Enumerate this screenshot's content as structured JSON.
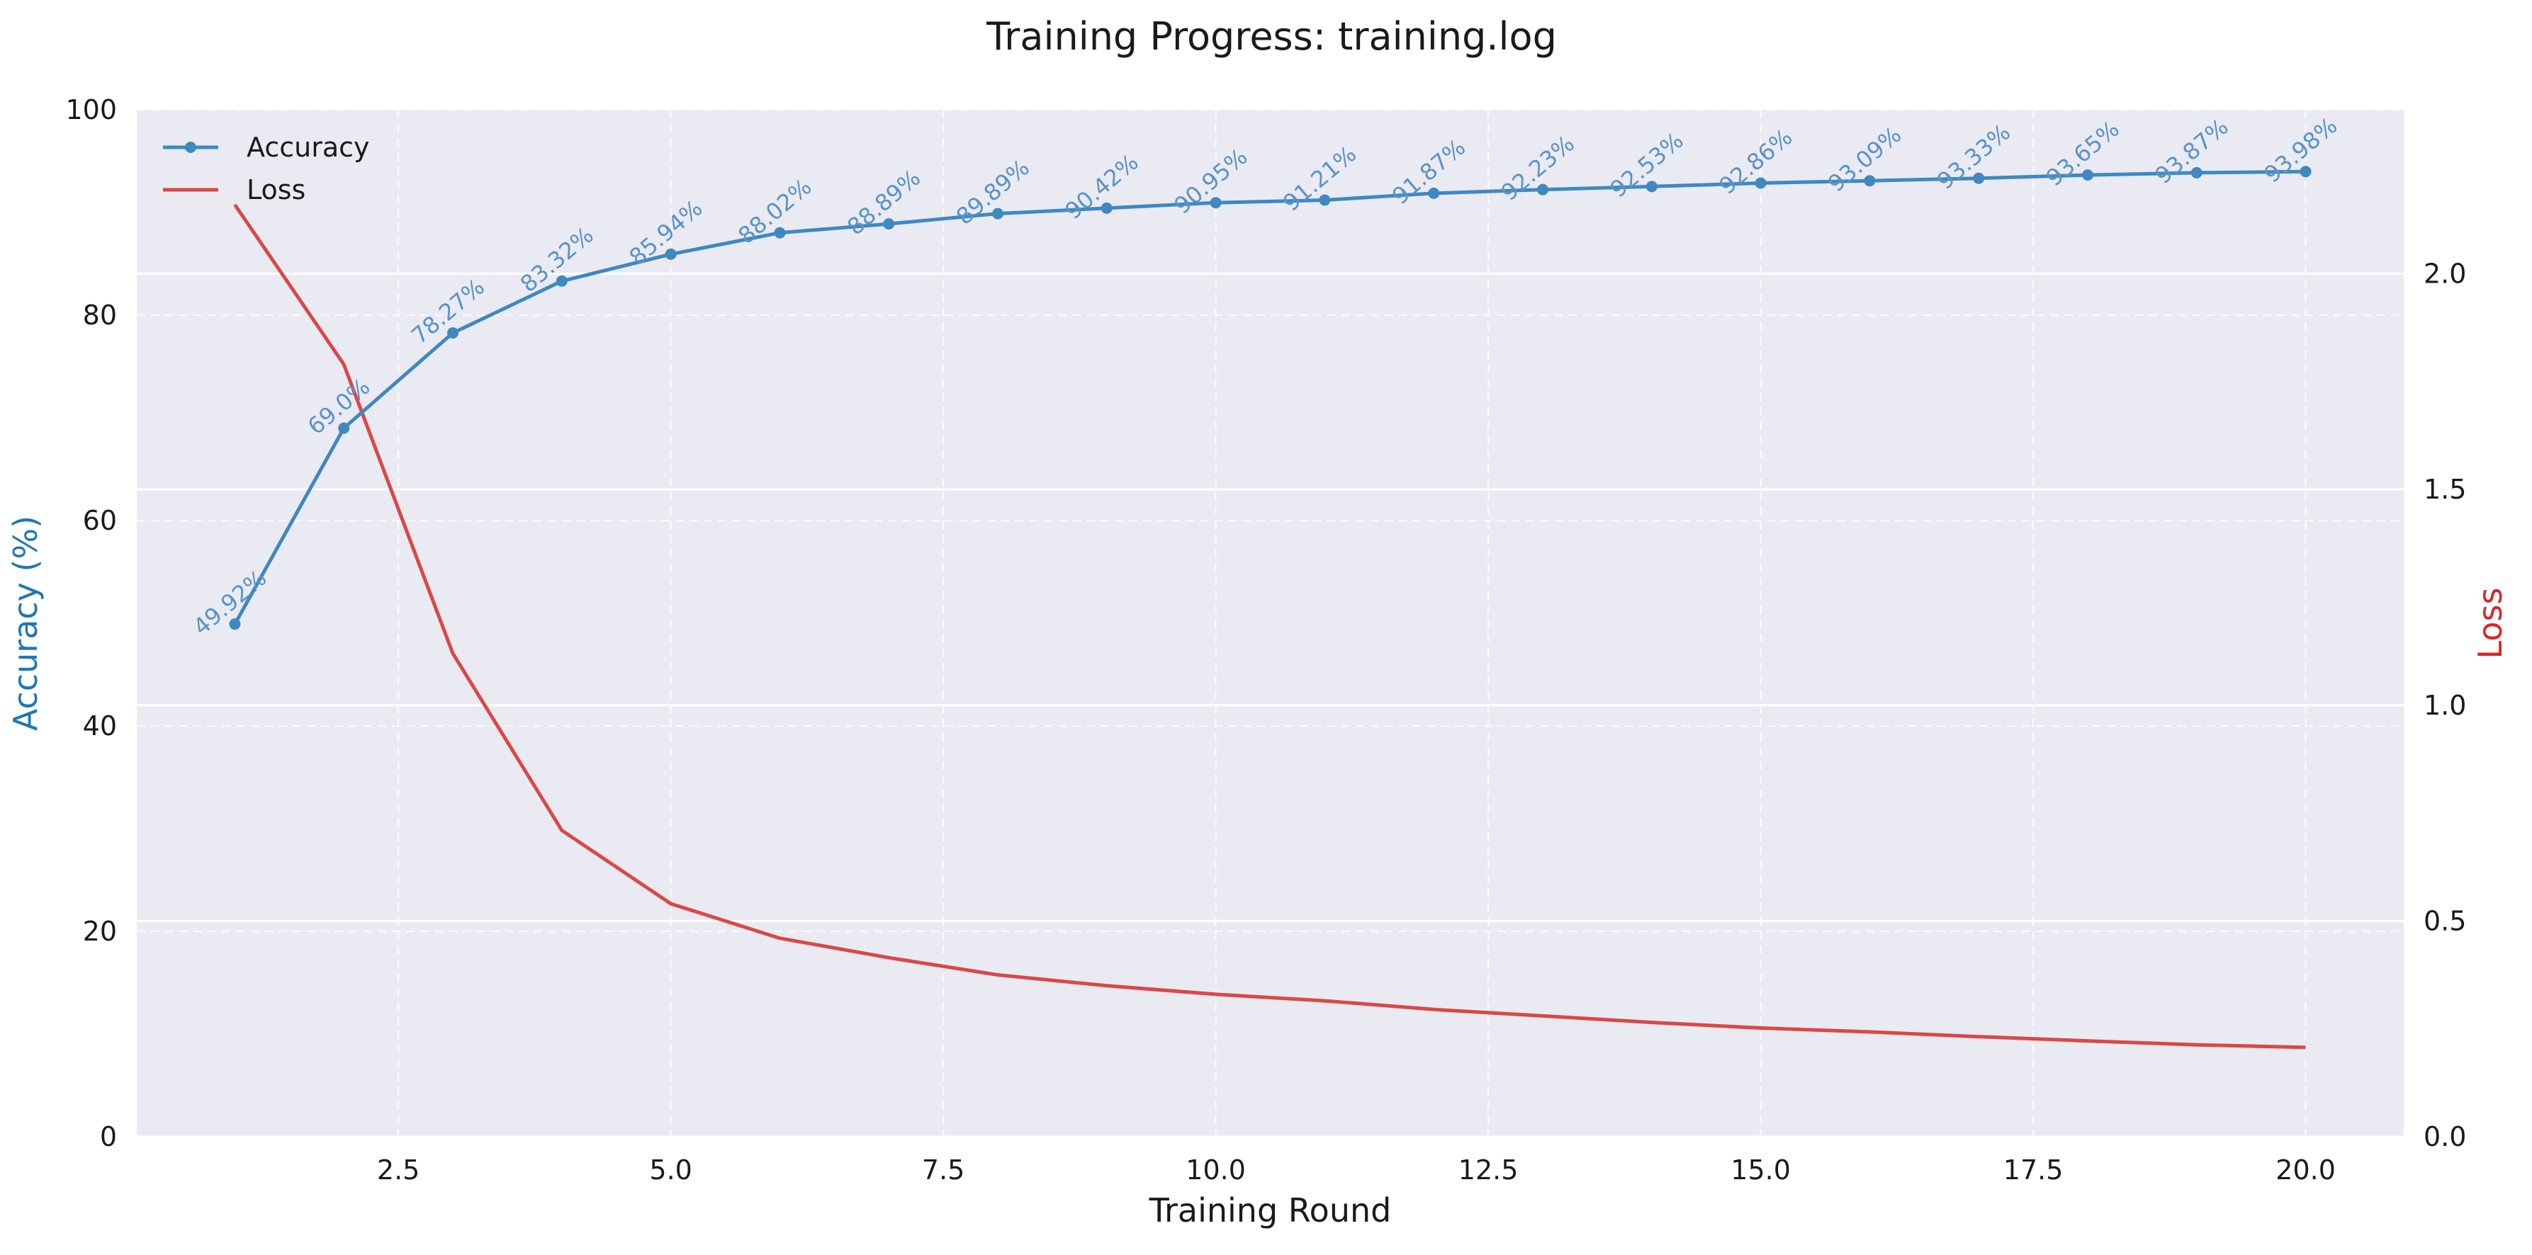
{
  "chart_data": {
    "type": "line",
    "title": "Training Progress: training.log",
    "xlabel": "Training Round",
    "ylabel": "Accuracy (%)",
    "y2label": "Loss",
    "xlim": [
      0.1,
      20.9
    ],
    "ylim": [
      0,
      100
    ],
    "y2lim": [
      0.0,
      2.38
    ],
    "xticks": [
      2.5,
      5.0,
      7.5,
      10.0,
      12.5,
      15.0,
      17.5,
      20.0
    ],
    "xtick_labels": [
      "2.5",
      "5.0",
      "7.5",
      "10.0",
      "12.5",
      "15.0",
      "17.5",
      "20.0"
    ],
    "yticks": [
      0,
      20,
      40,
      60,
      80,
      100
    ],
    "ytick_labels": [
      "0",
      "20",
      "40",
      "60",
      "80",
      "100"
    ],
    "y2ticks": [
      0.0,
      0.5,
      1.0,
      1.5,
      2.0
    ],
    "y2tick_labels": [
      "0.0",
      "0.5",
      "1.0",
      "1.5",
      "2.0"
    ],
    "grid": true,
    "legend_position": "top-left",
    "x": [
      1,
      2,
      3,
      4,
      5,
      6,
      7,
      8,
      9,
      10,
      11,
      12,
      13,
      14,
      15,
      16,
      17,
      18,
      19,
      20
    ],
    "series": [
      {
        "name": "Accuracy",
        "axis": "left",
        "color": "#3f88c0",
        "marker": "circle",
        "values": [
          49.92,
          69.0,
          78.27,
          83.32,
          85.94,
          88.02,
          88.89,
          89.89,
          90.42,
          90.95,
          91.21,
          91.87,
          92.23,
          92.53,
          92.86,
          93.09,
          93.33,
          93.65,
          93.87,
          93.98
        ],
        "data_labels": [
          "49.92%",
          "69.0%",
          "78.27%",
          "83.32%",
          "85.94%",
          "88.02%",
          "88.89%",
          "89.89%",
          "90.42%",
          "90.95%",
          "91.21%",
          "91.87%",
          "92.23%",
          "92.53%",
          "92.86%",
          "93.09%",
          "93.33%",
          "93.65%",
          "93.87%",
          "93.98%"
        ]
      },
      {
        "name": "Loss",
        "axis": "right",
        "color": "#d94848",
        "marker": "none",
        "values": [
          2.16,
          1.79,
          1.12,
          0.71,
          0.54,
          0.46,
          0.415,
          0.375,
          0.35,
          0.33,
          0.315,
          0.295,
          0.28,
          0.265,
          0.252,
          0.243,
          0.232,
          0.222,
          0.213,
          0.207
        ]
      }
    ]
  },
  "colors": {
    "plot_background": "#eaeaf2",
    "major_grid": "#ffffff",
    "minor_grid": "#ffffff",
    "accuracy_axis_label": "#1f77b4",
    "loss_axis_label": "#d62728"
  }
}
